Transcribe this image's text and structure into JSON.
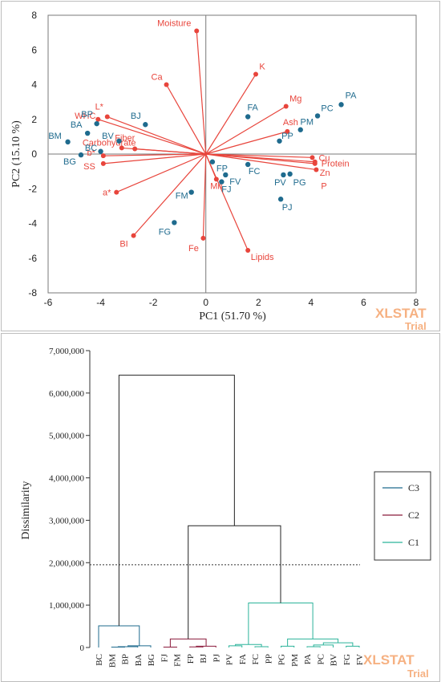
{
  "watermark": {
    "main": "XLSTAT",
    "sub": "Trial"
  },
  "chart_data": [
    {
      "type": "scatter",
      "subtype": "pca-biplot",
      "xlabel": "PC1 (51.70 %)",
      "ylabel": "PC2 (15.10 %)",
      "xlim": [
        -6,
        8
      ],
      "ylim": [
        -8,
        8
      ],
      "x_ticks": [
        "-6",
        "-4",
        "-2",
        "0",
        "2",
        "4",
        "6",
        "8"
      ],
      "y_ticks": [
        "8",
        "6",
        "4",
        "2",
        "0",
        "-2",
        "-4",
        "-6",
        "-8"
      ],
      "colors": {
        "observations": "#1f6b8e",
        "variables": "#e8453c",
        "axis": "#7a7a7a"
      },
      "observations": [
        {
          "label": "PA",
          "x": 5.15,
          "y": 2.85
        },
        {
          "label": "PC",
          "x": 4.25,
          "y": 2.2
        },
        {
          "label": "PM",
          "x": 3.6,
          "y": 1.4
        },
        {
          "label": "PP",
          "x": 2.8,
          "y": 0.75
        },
        {
          "label": "PV",
          "x": 2.95,
          "y": -1.2
        },
        {
          "label": "PG",
          "x": 3.2,
          "y": -1.15
        },
        {
          "label": "PJ",
          "x": 2.85,
          "y": -2.6
        },
        {
          "label": "FA",
          "x": 1.6,
          "y": 2.15
        },
        {
          "label": "FC",
          "x": 1.6,
          "y": -0.6
        },
        {
          "label": "FP",
          "x": 0.25,
          "y": -0.45
        },
        {
          "label": "FV",
          "x": 0.75,
          "y": -1.2
        },
        {
          "label": "FJ",
          "x": 0.6,
          "y": -1.6
        },
        {
          "label": "FM",
          "x": -0.55,
          "y": -2.2
        },
        {
          "label": "FG",
          "x": -1.2,
          "y": -3.95
        },
        {
          "label": "BJ",
          "x": -2.3,
          "y": 1.7
        },
        {
          "label": "BV",
          "x": -3.3,
          "y": 0.75
        },
        {
          "label": "BP",
          "x": -4.15,
          "y": 1.75
        },
        {
          "label": "BA",
          "x": -4.5,
          "y": 1.2
        },
        {
          "label": "BM",
          "x": -5.25,
          "y": 0.7
        },
        {
          "label": "BC",
          "x": -4.0,
          "y": 0.15
        },
        {
          "label": "BG",
          "x": -4.75,
          "y": -0.05
        }
      ],
      "variables": [
        {
          "label": "Moisture",
          "x": -0.35,
          "y": 7.1
        },
        {
          "label": "K",
          "x": 1.9,
          "y": 4.6
        },
        {
          "label": "Ca",
          "x": -1.5,
          "y": 4.0
        },
        {
          "label": "Mg",
          "x": 3.05,
          "y": 2.75
        },
        {
          "label": "Ash",
          "x": 3.1,
          "y": 1.3
        },
        {
          "label": "WHC",
          "x": -4.1,
          "y": 2.0
        },
        {
          "label": "L*",
          "x": -3.75,
          "y": 2.15
        },
        {
          "label": "Fiber",
          "x": -3.2,
          "y": 0.35
        },
        {
          "label": "Carbohydrate",
          "x": -2.7,
          "y": 0.3
        },
        {
          "label": "b*",
          "x": -3.9,
          "y": -0.1
        },
        {
          "label": "SS",
          "x": -3.9,
          "y": -0.55
        },
        {
          "label": "a*",
          "x": -3.4,
          "y": -2.2
        },
        {
          "label": "BI",
          "x": -2.75,
          "y": -4.7
        },
        {
          "label": "Fe",
          "x": -0.1,
          "y": -4.85
        },
        {
          "label": "Lipids",
          "x": 1.6,
          "y": -5.55
        },
        {
          "label": "Mn",
          "x": 0.4,
          "y": -1.45
        },
        {
          "label": "Cu",
          "x": 4.05,
          "y": -0.2
        },
        {
          "label": "Protein",
          "x": 4.15,
          "y": -0.45
        },
        {
          "label": "Zn",
          "x": 4.15,
          "y": -0.55
        },
        {
          "label": "P",
          "x": 4.2,
          "y": -0.9
        }
      ]
    },
    {
      "type": "dendrogram",
      "ylabel": "Dissimilarity",
      "ylim": [
        0,
        7000000
      ],
      "y_ticks": [
        "0",
        "1,000,000",
        "2,000,000",
        "3,000,000",
        "4,000,000",
        "5,000,000",
        "6,000,000",
        "7,000,000"
      ],
      "cut_level": 1950000,
      "leaves": [
        "BC",
        "BM",
        "BP",
        "BA",
        "BG",
        "FJ",
        "FM",
        "FP",
        "BJ",
        "PJ",
        "PV",
        "FA",
        "FC",
        "PP",
        "PG",
        "PM",
        "PA",
        "PC",
        "BV",
        "FG",
        "FV"
      ],
      "legend": [
        {
          "label": "C3",
          "color": "#1f6b8e"
        },
        {
          "label": "C2",
          "color": "#8b1a3b"
        },
        {
          "label": "C1",
          "color": "#2bb39a"
        }
      ],
      "merge_heights": {
        "root": 6420000,
        "c2_c1": 2870000,
        "c3_top": 510000,
        "c3_bp_group": 40000,
        "c2_top": 200000,
        "c2_fj_fm": 10000,
        "c2_fp_bj": 30000,
        "c1_top": 1050000,
        "c1_left": 70000,
        "c1_right": 200000,
        "c1_pa_group": 110000,
        "c1_fg_fv": 30000
      }
    }
  ]
}
